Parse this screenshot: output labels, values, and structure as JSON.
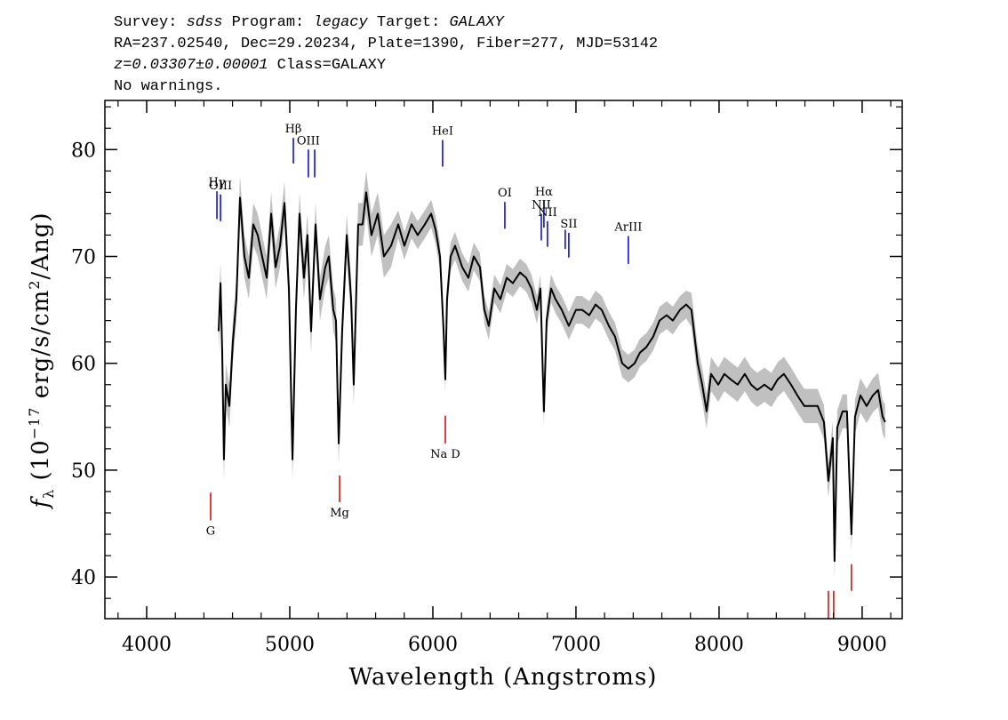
{
  "header": {
    "lines": [
      [
        {
          "text": "Survey: "
        },
        {
          "text": "sdss",
          "italic": true
        },
        {
          "text": " Program: "
        },
        {
          "text": "legacy",
          "italic": true
        },
        {
          "text": " Target: "
        },
        {
          "text": "GALAXY",
          "italic": true
        }
      ],
      [
        {
          "text": "RA=237.02540, Dec=29.20234, Plate=1390, Fiber=277, MJD=53142"
        }
      ],
      [
        {
          "text": "z=0.03307±0.00001",
          "italic": true
        },
        {
          "text": " Class=GALAXY"
        }
      ],
      [
        {
          "text": "No warnings."
        }
      ]
    ]
  },
  "chart_data": {
    "type": "line",
    "xlabel": "Wavelength (Angstroms)",
    "ylabel": [
      {
        "text": "f",
        "style": "italic"
      },
      {
        "text": "λ",
        "style": "sub"
      },
      {
        "text": " (10",
        "style": "normal"
      },
      {
        "text": "−17",
        "style": "sup"
      },
      {
        "text": " erg/s/cm",
        "style": "normal"
      },
      {
        "text": "2",
        "style": "sup"
      },
      {
        "text": "/Ang)",
        "style": "normal"
      }
    ],
    "xlim": [
      3708,
      9280
    ],
    "ylim": [
      36.1,
      84.6
    ],
    "xticks": [
      4000,
      5000,
      6000,
      7000,
      8000,
      9000
    ],
    "yticks": [
      40,
      50,
      60,
      70,
      80
    ],
    "xminor": [
      3800,
      4200,
      4400,
      4600,
      4800,
      5200,
      5400,
      5600,
      5800,
      6200,
      6400,
      6600,
      6800,
      7200,
      7400,
      7600,
      7800,
      8200,
      8400,
      8600,
      8800,
      9200
    ],
    "yminor": [
      38,
      42,
      44,
      46,
      48,
      52,
      54,
      56,
      58,
      62,
      64,
      66,
      68,
      72,
      74,
      76,
      78,
      82,
      84
    ],
    "x": [
      4503,
      4516,
      4528,
      4540,
      4553,
      4578,
      4602,
      4627,
      4652,
      4683,
      4714,
      4745,
      4776,
      4807,
      4839,
      4870,
      4901,
      4932,
      4963,
      4994,
      5019,
      5043,
      5068,
      5099,
      5124,
      5149,
      5180,
      5211,
      5248,
      5273,
      5304,
      5323,
      5342,
      5366,
      5398,
      5429,
      5447,
      5478,
      5509,
      5534,
      5571,
      5615,
      5658,
      5708,
      5758,
      5801,
      5851,
      5894,
      5944,
      5988,
      6019,
      6050,
      6075,
      6087,
      6099,
      6124,
      6155,
      6205,
      6248,
      6286,
      6329,
      6360,
      6391,
      6429,
      6472,
      6516,
      6559,
      6609,
      6652,
      6689,
      6727,
      6752,
      6776,
      6795,
      6826,
      6857,
      6901,
      6950,
      7000,
      7043,
      7093,
      7137,
      7180,
      7230,
      7273,
      7323,
      7366,
      7410,
      7447,
      7491,
      7540,
      7584,
      7634,
      7677,
      7727,
      7770,
      7807,
      7851,
      7882,
      7913,
      7944,
      7994,
      8037,
      8081,
      8130,
      8180,
      8224,
      8267,
      8317,
      8366,
      8410,
      8453,
      8503,
      8547,
      8596,
      8640,
      8689,
      8733,
      8764,
      8795,
      8807,
      8826,
      8863,
      8894,
      8925,
      8950,
      8988,
      9031,
      9075,
      9112,
      9143,
      9161
    ],
    "series": [
      {
        "color": "#000000",
        "band_color": "#c0c0c0",
        "values": [
          63,
          67.5,
          61,
          51,
          58,
          56,
          62,
          66,
          75.5,
          70,
          68,
          73,
          72,
          70,
          68,
          74,
          69,
          71,
          75,
          67,
          51,
          65,
          74,
          68,
          72,
          63,
          73,
          66,
          69,
          70,
          65,
          64,
          52.5,
          63,
          72,
          66,
          58,
          73,
          73,
          76,
          72,
          74,
          70,
          71,
          73,
          71,
          73,
          72,
          73,
          74,
          72.5,
          70,
          63,
          58.5,
          66,
          70,
          71,
          69,
          68,
          70,
          69,
          65,
          63.5,
          67,
          66,
          68,
          67.5,
          68.5,
          68,
          67,
          65,
          67,
          55.5,
          64,
          67,
          66,
          65,
          63.5,
          65,
          65,
          64.5,
          65.5,
          65,
          63.5,
          62.5,
          60,
          59.5,
          60,
          61,
          61.5,
          62.5,
          64,
          64.5,
          64,
          65,
          65.5,
          65,
          60,
          58,
          55.5,
          59,
          58,
          59,
          58.5,
          58,
          59,
          58,
          57.5,
          58,
          57.5,
          58.5,
          59,
          58,
          57,
          56,
          56,
          56,
          54.5,
          49,
          53,
          41.5,
          54,
          55.5,
          55.5,
          44,
          55,
          57,
          56,
          57,
          57.5,
          55,
          54.5
        ],
        "errors": [
          2,
          2,
          2,
          2,
          2,
          2,
          2,
          2,
          2,
          2,
          2,
          2,
          2,
          2,
          2,
          2,
          2,
          2,
          2,
          2,
          2,
          2,
          2,
          2,
          2,
          2,
          2,
          2,
          2,
          2,
          2,
          2,
          2,
          2,
          2,
          2,
          2,
          2,
          2,
          2,
          2,
          2,
          2,
          2,
          1.3,
          1.3,
          1.3,
          1.3,
          1.3,
          1.3,
          1.3,
          1.3,
          1.3,
          1.3,
          1.3,
          1.3,
          1.3,
          1.3,
          1.3,
          1.3,
          1.3,
          1.3,
          1.3,
          1.3,
          1.3,
          1.3,
          1.3,
          1.3,
          1.3,
          1.3,
          1.3,
          1.3,
          1.3,
          1.3,
          1.3,
          1.3,
          1.3,
          1.3,
          1.3,
          1.3,
          1.3,
          1.3,
          1.3,
          1.3,
          1.3,
          1.3,
          1.3,
          1.3,
          1.3,
          1.3,
          1.3,
          1.3,
          1.3,
          1.3,
          1.3,
          1.3,
          1.6,
          1.6,
          1.6,
          1.6,
          1.6,
          1.6,
          1.6,
          1.6,
          1.6,
          1.6,
          1.6,
          1.6,
          1.6,
          1.6,
          1.6,
          1.6,
          1.6,
          1.6,
          1.6,
          1.6,
          1.6,
          1.6,
          1.6,
          1.6,
          1.6,
          1.6,
          1.6,
          1.6,
          1.6,
          1.6,
          1.6,
          1.6,
          1.6,
          1.6,
          1.6,
          1.6
        ]
      }
    ],
    "markers": [
      {
        "label": "Hγ",
        "x": 4491,
        "y": [
          73.5,
          76.1
        ],
        "color": "#0000cc"
      },
      {
        "label": "OIII",
        "x": 4516,
        "y": [
          73.3,
          75.8
        ],
        "color": "#0000cc"
      },
      {
        "label": "Hβ",
        "x": 5025,
        "y": [
          78.7,
          81.1
        ],
        "color": "#0000cc"
      },
      {
        "label": "OIII",
        "x": 5130,
        "y": [
          77.4,
          80.0
        ],
        "color": "#0000cc"
      },
      {
        "x": 5174,
        "y": [
          77.4,
          80.0
        ],
        "color": "#0000cc"
      },
      {
        "label": "HeI",
        "x": 6068,
        "y": [
          78.4,
          80.9
        ],
        "color": "#0000cc"
      },
      {
        "label": "OI",
        "x": 6503,
        "y": [
          72.6,
          75.1
        ],
        "color": "#0000cc"
      },
      {
        "label": "NII",
        "x": 6758,
        "y": [
          71.5,
          74.0
        ],
        "color": "#0000cc"
      },
      {
        "label": "Hα",
        "x": 6776,
        "y": [
          72.7,
          75.2
        ],
        "color": "#0000cc"
      },
      {
        "label": "NII",
        "x": 6801,
        "y": [
          70.9,
          73.3
        ],
        "color": "#0000cc"
      },
      {
        "x": 6925,
        "y": [
          70.7,
          72.5
        ],
        "color": "#0000cc"
      },
      {
        "label": "SII",
        "x": 6950,
        "y": [
          69.9,
          72.2
        ],
        "color": "#0000cc"
      },
      {
        "label": "ArIII",
        "x": 7366,
        "y": [
          69.3,
          71.9
        ],
        "color": "#0000cc"
      },
      {
        "label": "G",
        "x": 4447,
        "y": [
          45.3,
          47.9
        ],
        "color": "#dd0000"
      },
      {
        "label": "Mg",
        "x": 5348,
        "y": [
          47.0,
          49.5
        ],
        "color": "#dd0000"
      },
      {
        "label": "Na D",
        "x": 6087,
        "y": [
          52.5,
          55.1
        ],
        "color": "#dd0000"
      },
      {
        "x": 8764,
        "y": [
          36.1,
          38.7
        ],
        "color": "#dd0000"
      },
      {
        "x": 8801,
        "y": [
          36.1,
          38.7
        ],
        "color": "#dd0000"
      },
      {
        "x": 8925,
        "y": [
          38.7,
          41.2
        ],
        "color": "#dd0000"
      }
    ]
  }
}
